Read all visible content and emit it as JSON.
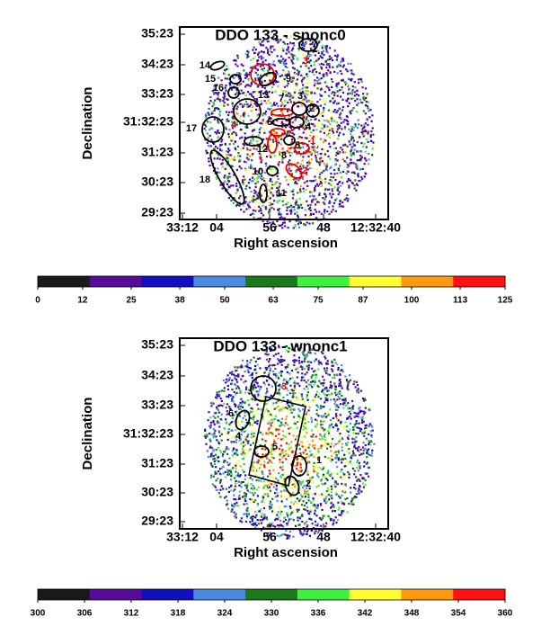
{
  "panels": [
    {
      "title": "DDO 133 - snonc0",
      "x_label": "Right ascension",
      "y_label": "Declination",
      "x_ticks": [
        "33:12",
        "04",
        "56",
        "48",
        "12:32:40"
      ],
      "y_ticks": [
        "35:23",
        "34:23",
        "33:23",
        "31:32:23",
        "31:23",
        "30:23",
        "29:23"
      ],
      "regions": [
        "1",
        "3",
        "14",
        "15",
        "9",
        "16",
        "13",
        "7",
        "3",
        "2",
        "6",
        "4",
        "17",
        "4",
        "12",
        "5",
        "1",
        "8",
        "10",
        "2",
        "18",
        "11"
      ]
    },
    {
      "title": "DDO 133 - wnonc1",
      "x_label": "Right ascension",
      "y_label": "Declination",
      "x_ticks": [
        "33:12",
        "04",
        "56",
        "48",
        "12:32:40"
      ],
      "y_ticks": [
        "35:23",
        "34:23",
        "33:23",
        "31:32:23",
        "31:23",
        "30:23",
        "29:23"
      ],
      "regions": [
        "3",
        "6",
        "4",
        "5",
        "1",
        "2"
      ]
    }
  ],
  "colorbars": [
    {
      "ticks": [
        0,
        12,
        25,
        38,
        50,
        63,
        75,
        87,
        100,
        113,
        125
      ],
      "colors": [
        "#1a1a1a",
        "#5a0a9a",
        "#1010c0",
        "#4a8ae0",
        "#1a7a1a",
        "#40f040",
        "#ffff30",
        "#ff9a10",
        "#ff1010"
      ]
    },
    {
      "ticks": [
        300,
        306,
        312,
        318,
        324,
        330,
        336,
        342,
        348,
        354,
        360
      ],
      "colors": [
        "#1a1a1a",
        "#5a0a9a",
        "#1010c0",
        "#4a8ae0",
        "#1a7a1a",
        "#40f040",
        "#ffff30",
        "#ff9a10",
        "#ff1010"
      ]
    }
  ]
}
